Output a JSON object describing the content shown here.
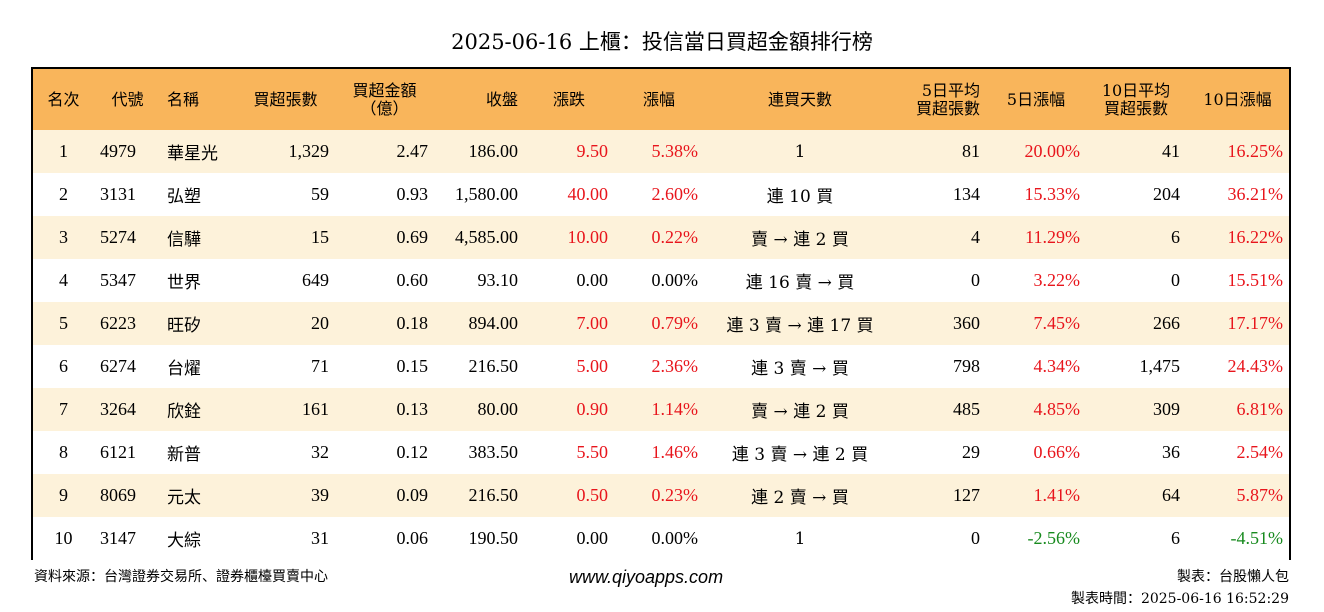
{
  "title": "2025-06-16 上櫃：投信當日買超金額排行榜",
  "colors": {
    "header_bg": "#f9b55b",
    "odd_row_bg": "#fdf2da",
    "up": "#e8151c",
    "down": "#178a1e"
  },
  "headers": {
    "rank": "名次",
    "code": "代號",
    "name": "名稱",
    "buy_lots": "買超張數",
    "buy_amount_1": "買超金額",
    "buy_amount_2": "（億）",
    "close": "收盤",
    "change": "漲跌",
    "change_pct": "漲幅",
    "streak": "連買天數",
    "avg5_1": "5日平均",
    "avg5_2": "買超張數",
    "pct5": "5日漲幅",
    "avg10_1": "10日平均",
    "avg10_2": "買超張數",
    "pct10": "10日漲幅"
  },
  "rows": [
    {
      "rank": "1",
      "code": "4979",
      "name": "華星光",
      "lots": "1,329",
      "amount": "2.47",
      "close": "186.00",
      "change": "9.50",
      "change_dir": "up",
      "pct": "5.38%",
      "pct_dir": "up",
      "streak": "1",
      "avg5": "81",
      "pct5": "20.00%",
      "pct5_dir": "up",
      "avg10": "41",
      "pct10": "16.25%",
      "pct10_dir": "up"
    },
    {
      "rank": "2",
      "code": "3131",
      "name": "弘塑",
      "lots": "59",
      "amount": "0.93",
      "close": "1,580.00",
      "change": "40.00",
      "change_dir": "up",
      "pct": "2.60%",
      "pct_dir": "up",
      "streak": "連 10 買",
      "avg5": "134",
      "pct5": "15.33%",
      "pct5_dir": "up",
      "avg10": "204",
      "pct10": "36.21%",
      "pct10_dir": "up"
    },
    {
      "rank": "3",
      "code": "5274",
      "name": "信驊",
      "lots": "15",
      "amount": "0.69",
      "close": "4,585.00",
      "change": "10.00",
      "change_dir": "up",
      "pct": "0.22%",
      "pct_dir": "up",
      "streak": "賣 → 連 2 買",
      "avg5": "4",
      "pct5": "11.29%",
      "pct5_dir": "up",
      "avg10": "6",
      "pct10": "16.22%",
      "pct10_dir": "up"
    },
    {
      "rank": "4",
      "code": "5347",
      "name": "世界",
      "lots": "649",
      "amount": "0.60",
      "close": "93.10",
      "change": "0.00",
      "change_dir": "flat",
      "pct": "0.00%",
      "pct_dir": "flat",
      "streak": "連 16 賣 → 買",
      "avg5": "0",
      "pct5": "3.22%",
      "pct5_dir": "up",
      "avg10": "0",
      "pct10": "15.51%",
      "pct10_dir": "up"
    },
    {
      "rank": "5",
      "code": "6223",
      "name": "旺矽",
      "lots": "20",
      "amount": "0.18",
      "close": "894.00",
      "change": "7.00",
      "change_dir": "up",
      "pct": "0.79%",
      "pct_dir": "up",
      "streak": "連 3 賣 → 連 17 買",
      "avg5": "360",
      "pct5": "7.45%",
      "pct5_dir": "up",
      "avg10": "266",
      "pct10": "17.17%",
      "pct10_dir": "up"
    },
    {
      "rank": "6",
      "code": "6274",
      "name": "台燿",
      "lots": "71",
      "amount": "0.15",
      "close": "216.50",
      "change": "5.00",
      "change_dir": "up",
      "pct": "2.36%",
      "pct_dir": "up",
      "streak": "連 3 賣 → 買",
      "avg5": "798",
      "pct5": "4.34%",
      "pct5_dir": "up",
      "avg10": "1,475",
      "pct10": "24.43%",
      "pct10_dir": "up"
    },
    {
      "rank": "7",
      "code": "3264",
      "name": "欣銓",
      "lots": "161",
      "amount": "0.13",
      "close": "80.00",
      "change": "0.90",
      "change_dir": "up",
      "pct": "1.14%",
      "pct_dir": "up",
      "streak": "賣 → 連 2 買",
      "avg5": "485",
      "pct5": "4.85%",
      "pct5_dir": "up",
      "avg10": "309",
      "pct10": "6.81%",
      "pct10_dir": "up"
    },
    {
      "rank": "8",
      "code": "6121",
      "name": "新普",
      "lots": "32",
      "amount": "0.12",
      "close": "383.50",
      "change": "5.50",
      "change_dir": "up",
      "pct": "1.46%",
      "pct_dir": "up",
      "streak": "連 3 賣 → 連 2 買",
      "avg5": "29",
      "pct5": "0.66%",
      "pct5_dir": "up",
      "avg10": "36",
      "pct10": "2.54%",
      "pct10_dir": "up"
    },
    {
      "rank": "9",
      "code": "8069",
      "name": "元太",
      "lots": "39",
      "amount": "0.09",
      "close": "216.50",
      "change": "0.50",
      "change_dir": "up",
      "pct": "0.23%",
      "pct_dir": "up",
      "streak": "連 2 賣 → 買",
      "avg5": "127",
      "pct5": "1.41%",
      "pct5_dir": "up",
      "avg10": "64",
      "pct10": "5.87%",
      "pct10_dir": "up"
    },
    {
      "rank": "10",
      "code": "3147",
      "name": "大綜",
      "lots": "31",
      "amount": "0.06",
      "close": "190.50",
      "change": "0.00",
      "change_dir": "flat",
      "pct": "0.00%",
      "pct_dir": "flat",
      "streak": "1",
      "avg5": "0",
      "pct5": "-2.56%",
      "pct5_dir": "down",
      "avg10": "6",
      "pct10": "-4.51%",
      "pct10_dir": "down"
    }
  ],
  "footer": {
    "source": "資料來源：台灣證券交易所、證券櫃檯買賣中心",
    "website": "www.qiyoapps.com",
    "maker": "製表：台股懶人包",
    "made_time": "製表時間：2025-06-16 16:52:29"
  }
}
